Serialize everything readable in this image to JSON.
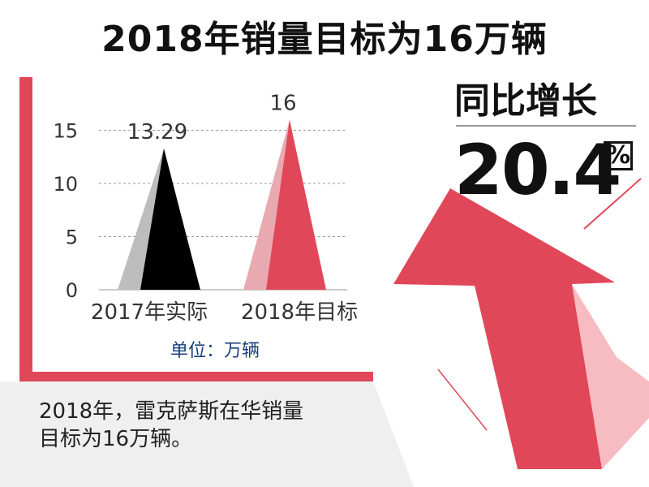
{
  "title": "2018年销量目标为16万辆",
  "side": {
    "label": "同比增长",
    "value": "20.4",
    "unit": "%"
  },
  "unit_note": "单位：万辆",
  "caption": {
    "line1": "2018年，雷克萨斯在华销量",
    "line2": "目标为16万辆。"
  },
  "colors": {
    "accent_red": "#e0485a",
    "light_pink": "#e8a9b0",
    "black": "#000000",
    "gray": "#bdbdbd"
  },
  "chart_data": {
    "type": "bar",
    "categories": [
      "2017年实际",
      "2018年目标"
    ],
    "values": [
      13.29,
      16
    ],
    "data_labels": [
      "13.29",
      "16"
    ],
    "yticks": [
      0,
      5,
      10,
      15
    ],
    "ylim": [
      0,
      17.5
    ],
    "grid": true
  }
}
